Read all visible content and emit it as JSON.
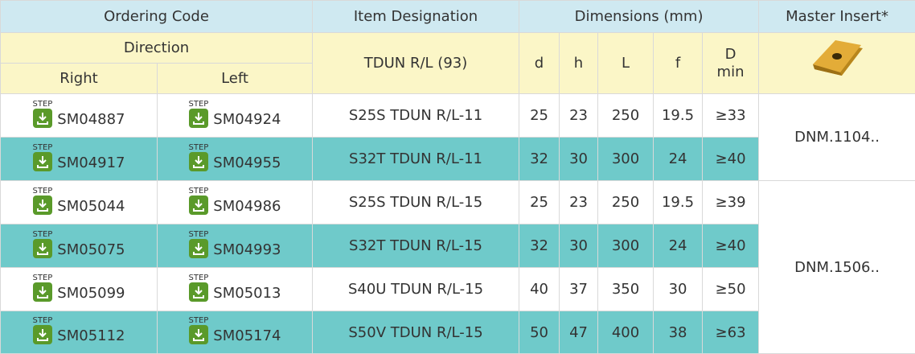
{
  "header": {
    "ordering_code": "Ordering Code",
    "item_designation": "Item Designation",
    "dimensions": "Dimensions (mm)",
    "master_insert": "Master Insert*",
    "direction": "Direction",
    "item_series": "TDUN R/L (93)",
    "dim_columns": [
      "d",
      "h",
      "L",
      "f",
      "D min"
    ],
    "right": "Right",
    "left": "Left"
  },
  "step_label": "STEP",
  "rows": [
    {
      "right": "SM04887",
      "left": "SM04924",
      "item": "S25S TDUN R/L-11",
      "d": 25,
      "h": 23,
      "L": 250,
      "f": 19.5,
      "d_min": "≥33"
    },
    {
      "right": "SM04917",
      "left": "SM04955",
      "item": "S32T TDUN R/L-11",
      "d": 32,
      "h": 30,
      "L": 300,
      "f": 24,
      "d_min": "≥40"
    },
    {
      "right": "SM05044",
      "left": "SM04986",
      "item": "S25S TDUN R/L-15",
      "d": 25,
      "h": 23,
      "L": 250,
      "f": 19.5,
      "d_min": "≥39"
    },
    {
      "right": "SM05075",
      "left": "SM04993",
      "item": "S32T TDUN R/L-15",
      "d": 32,
      "h": 30,
      "L": 300,
      "f": 24,
      "d_min": "≥40"
    },
    {
      "right": "SM05099",
      "left": "SM05013",
      "item": "S40U TDUN R/L-15",
      "d": 40,
      "h": 37,
      "L": 350,
      "f": 30,
      "d_min": "≥50"
    },
    {
      "right": "SM05112",
      "left": "SM05174",
      "item": "S50V TDUN R/L-15",
      "d": 50,
      "h": 47,
      "L": 400,
      "f": 38,
      "d_min": "≥63"
    }
  ],
  "master_inserts": [
    "DNM.1104..",
    "DNM.1506.."
  ]
}
